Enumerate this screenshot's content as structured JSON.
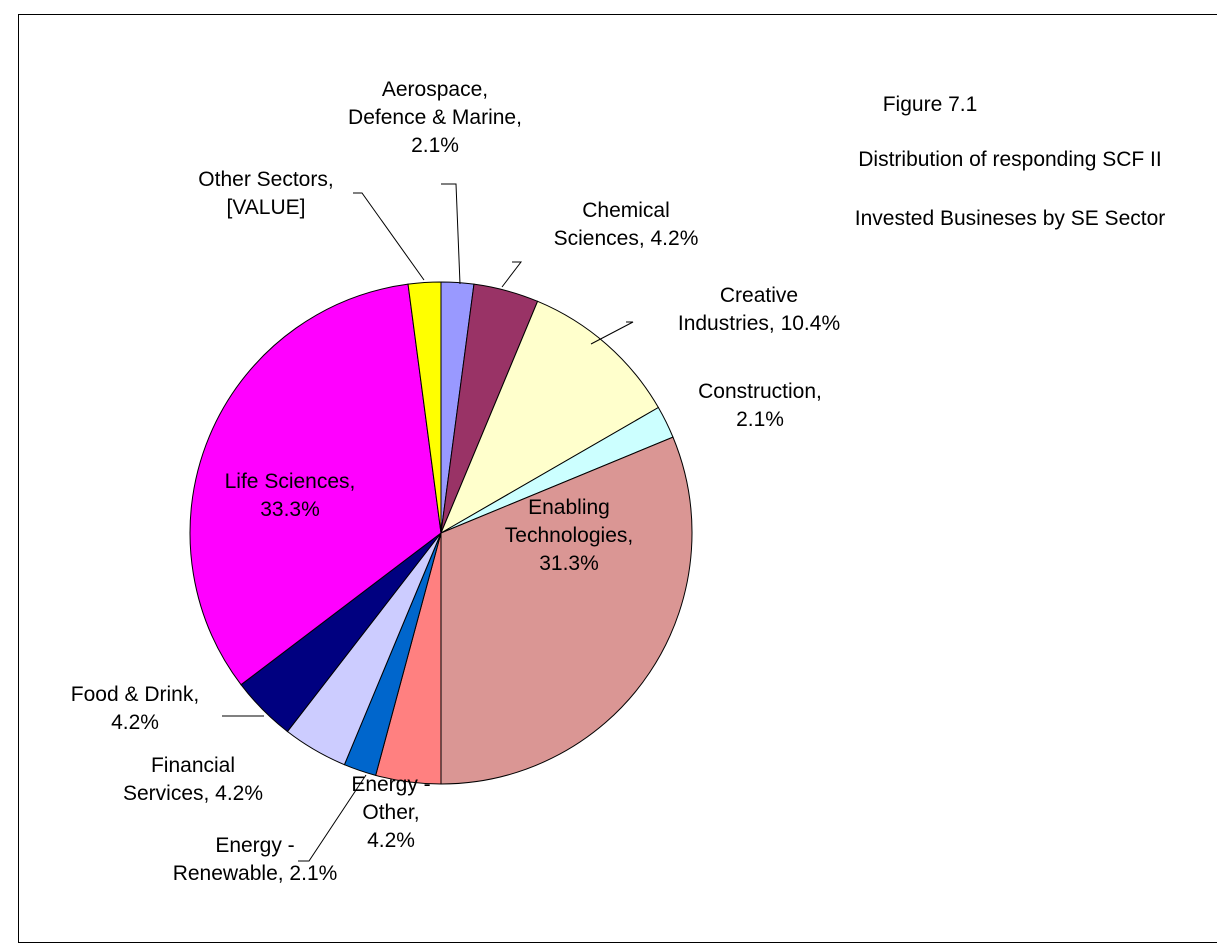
{
  "title": {
    "line1": "Figure 7.1",
    "line2": "Distribution of responding SCF II",
    "line3": "Invested Busineses by SE Sector"
  },
  "chart_data": {
    "type": "pie",
    "title": "Figure 7.1 Distribution of responding SCF II Invested Busineses by SE Sector",
    "start_angle_deg": 0,
    "direction": "clockwise",
    "slices": [
      {
        "name": "Aerospace, Defence & Marine",
        "value": 2.1,
        "label": [
          "Aerospace,",
          "Defence & Marine,",
          "2.1%"
        ],
        "color": "#9999FF"
      },
      {
        "name": "Chemical Sciences",
        "value": 4.2,
        "label": [
          "Chemical",
          "Sciences, 4.2%"
        ],
        "color": "#993366"
      },
      {
        "name": "Creative Industries",
        "value": 10.4,
        "label": [
          "Creative",
          "Industries, 10.4%"
        ],
        "color": "#FFFFCC"
      },
      {
        "name": "Construction",
        "value": 2.1,
        "label": [
          "Construction,",
          "2.1%"
        ],
        "color": "#CCFFFF"
      },
      {
        "name": "Enabling Technologies",
        "value": 31.3,
        "label": [
          "Enabling",
          "Technologies,",
          "31.3%"
        ],
        "color": "#DA9694"
      },
      {
        "name": "Energy - Other",
        "value": 4.2,
        "label": [
          "Energy -",
          "Other,",
          "4.2%"
        ],
        "color": "#FF8080"
      },
      {
        "name": "Energy - Renewable",
        "value": 2.1,
        "label": [
          "Energy -",
          "Renewable, 2.1%"
        ],
        "color": "#0066CC"
      },
      {
        "name": "Financial Services",
        "value": 4.2,
        "label": [
          "Financial",
          "Services, 4.2%"
        ],
        "color": "#CCCCFF"
      },
      {
        "name": "Food & Drink",
        "value": 4.2,
        "label": [
          "Food & Drink,",
          "4.2%"
        ],
        "color": "#000080"
      },
      {
        "name": "Life Sciences",
        "value": 33.3,
        "label": [
          "Life Sciences,",
          "33.3%"
        ],
        "color": "#FF00FF"
      },
      {
        "name": "Other Sectors",
        "value": 2.1,
        "label": [
          "Other Sectors,",
          "[VALUE]"
        ],
        "color": "#FFFF00"
      }
    ]
  }
}
